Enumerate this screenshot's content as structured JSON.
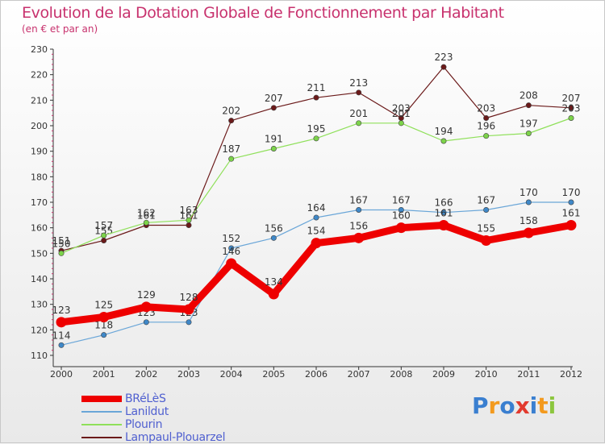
{
  "title": "Evolution de la Dotation Globale de Fonctionnement par Habitant",
  "subtitle": "(en € et par an)",
  "logo": {
    "text": "Proxiti",
    "letters": [
      "P",
      "r",
      "o",
      "x",
      "i",
      "t",
      "i"
    ],
    "colors": [
      "#3a7fd0",
      "#f39a1e",
      "#3a7fd0",
      "#e23a2e",
      "#3a7fd0",
      "#f39a1e",
      "#8cc63e"
    ]
  },
  "chart_data": {
    "type": "line",
    "title": "Evolution de la Dotation Globale de Fonctionnement par Habitant",
    "subtitle": "(en € et par an)",
    "categories": [
      "2000",
      "2001",
      "2002",
      "2003",
      "2004",
      "2005",
      "2006",
      "2007",
      "2008",
      "2009",
      "2010",
      "2011",
      "2012"
    ],
    "ylim": [
      110,
      230
    ],
    "yticks": [
      110,
      120,
      130,
      140,
      150,
      160,
      170,
      180,
      190,
      200,
      210,
      220,
      230
    ],
    "series": [
      {
        "name": "Lampaul-Plouarzel",
        "color": "#6b1a1a",
        "marker": "#6b1a1a",
        "width": 1.2,
        "values": [
          151,
          155,
          161,
          161,
          202,
          207,
          211,
          213,
          203,
          223,
          203,
          208,
          207
        ],
        "labels": [
          "151",
          "155",
          "161",
          "161",
          "202",
          "207",
          "211",
          "213",
          "203",
          "223",
          "203",
          "208",
          "207"
        ]
      },
      {
        "name": "Plourin",
        "color": "#8fe05a",
        "marker": "#7cd34a",
        "width": 1.2,
        "values": [
          150,
          157,
          162,
          163,
          187,
          191,
          195,
          201,
          201,
          194,
          196,
          197,
          203
        ],
        "labels": [
          "150",
          "157",
          "162",
          "163",
          "187",
          "191",
          "195",
          "201",
          "201",
          "194",
          "196",
          "197",
          "203"
        ]
      },
      {
        "name": "Lanildut",
        "color": "#6aa6d8",
        "marker": "#3f88c8",
        "width": 1.2,
        "values": [
          114,
          118,
          123,
          123,
          152,
          156,
          164,
          167,
          167,
          166,
          167,
          170,
          170
        ],
        "labels": [
          "114",
          "118",
          "123",
          "123",
          "152",
          "156",
          "164",
          "167",
          "167",
          "166",
          "167",
          "170",
          "170"
        ]
      },
      {
        "name": "BRéLèS",
        "color": "#ee0000",
        "marker": "#ee0000",
        "width": 9,
        "values": [
          123,
          125,
          129,
          128,
          146,
          134,
          154,
          156,
          160,
          161,
          155,
          158,
          161
        ],
        "labels": [
          "123",
          "125",
          "129",
          "128",
          "146",
          "134",
          "154",
          "156",
          "160",
          "161",
          "155",
          "158",
          "161"
        ]
      }
    ],
    "legend": [
      "BRéLèS",
      "Lanildut",
      "Plourin",
      "Lampaul-Plouarzel"
    ],
    "legend_position": "bottom-left",
    "grid": false
  }
}
